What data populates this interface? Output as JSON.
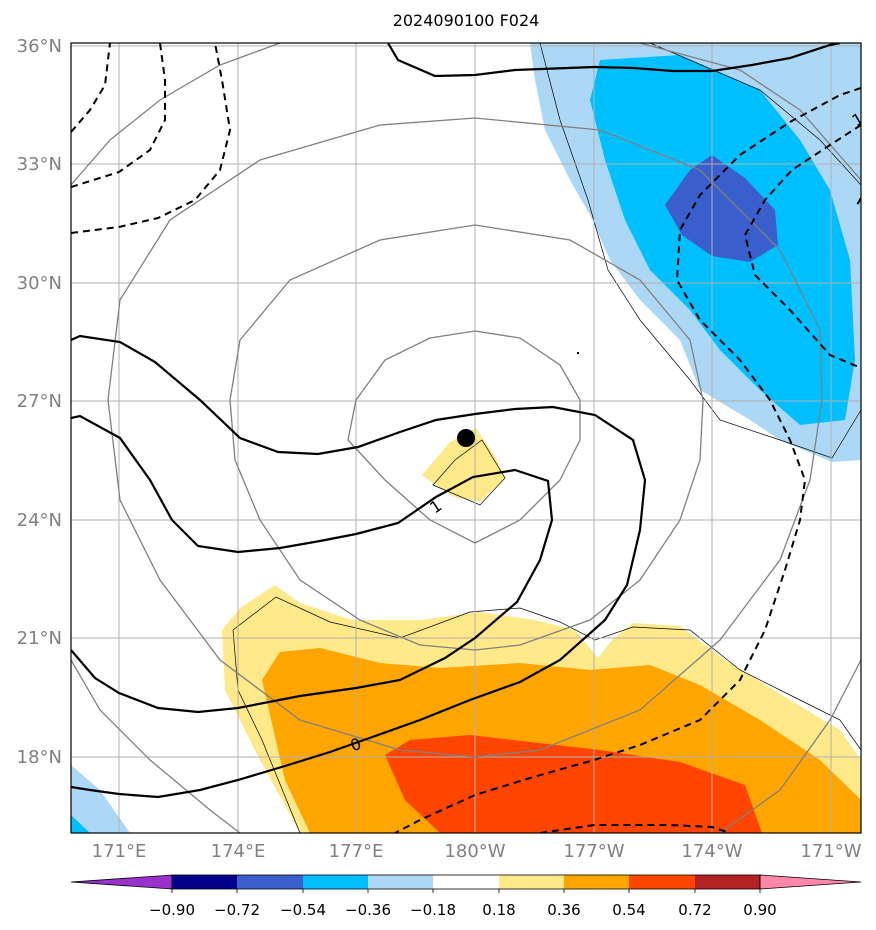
{
  "title": "2024090100 F024",
  "map": {
    "lat_labels": [
      "36°N",
      "33°N",
      "30°N",
      "27°N",
      "24°N",
      "21°N",
      "18°N"
    ],
    "lon_labels": [
      "171°E",
      "174°E",
      "177°E",
      "180°W",
      "177°W",
      "174°W",
      "171°W"
    ],
    "contour_labels": [
      "1",
      "0",
      "1"
    ],
    "center_marker": "storm-center"
  },
  "colorbar": {
    "ticks": [
      "−0.90",
      "−0.72",
      "−0.54",
      "−0.36",
      "−0.18",
      "0.18",
      "0.36",
      "0.54",
      "0.72",
      "0.90"
    ],
    "colors": [
      "#9932cc",
      "#00008b",
      "#3a5fcd",
      "#00bfff",
      "#add8f5",
      "#ffffff",
      "#ffe98a",
      "#ffa500",
      "#ff4500",
      "#b22222",
      "#ff88aa"
    ]
  }
}
